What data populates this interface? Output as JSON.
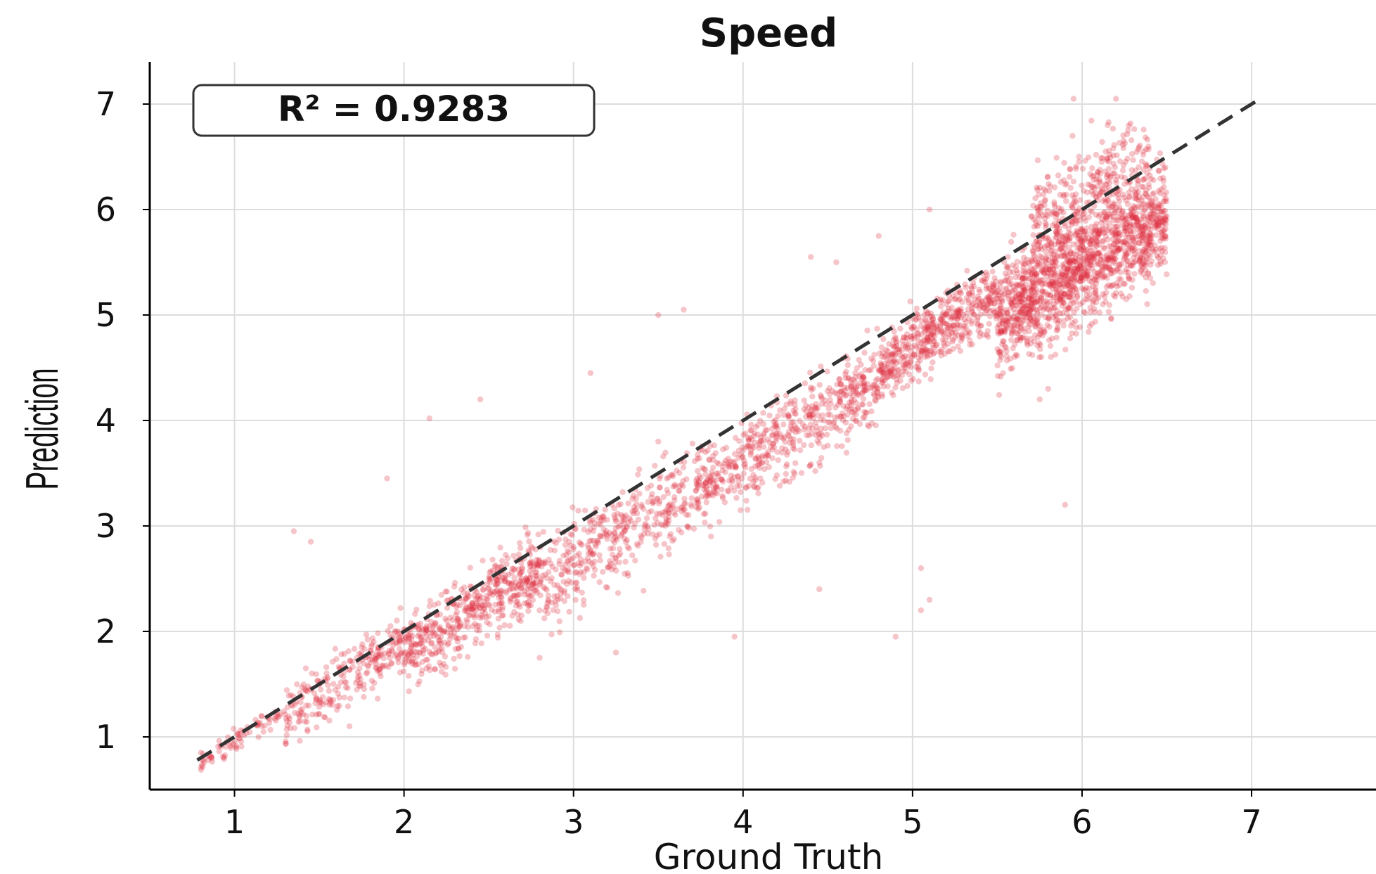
{
  "chart_data": {
    "type": "scatter",
    "title": "Speed",
    "xlabel": "Ground Truth",
    "ylabel": "Prediction",
    "xlim": [
      0.5,
      7.3
    ],
    "ylim": [
      0.5,
      7.4
    ],
    "xticks": [
      "1",
      "2",
      "3",
      "4",
      "5",
      "6",
      "7"
    ],
    "yticks": [
      "1",
      "2",
      "3",
      "4",
      "5",
      "6",
      "7"
    ],
    "grid": true,
    "annotation": "R² = 0.9283",
    "point_color": "#e03040",
    "reference_line": {
      "style": "dashed",
      "color": "#333333",
      "from": [
        0.78,
        0.78
      ],
      "to": [
        7.05,
        7.05
      ]
    },
    "clusters": [
      {
        "x_range": [
          0.8,
          1.3
        ],
        "y_center_offset": -0.05,
        "spread": 0.08,
        "count": 80
      },
      {
        "x_range": [
          1.3,
          2.0
        ],
        "y_center_offset": -0.1,
        "spread": 0.22,
        "count": 260
      },
      {
        "x_range": [
          2.0,
          2.8
        ],
        "y_center_offset": -0.2,
        "spread": 0.25,
        "count": 520
      },
      {
        "x_range": [
          2.8,
          3.8
        ],
        "y_center_offset": -0.35,
        "spread": 0.3,
        "count": 460
      },
      {
        "x_range": [
          3.8,
          4.8
        ],
        "y_center_offset": -0.4,
        "spread": 0.28,
        "count": 520
      },
      {
        "x_range": [
          4.8,
          5.5
        ],
        "y_center_offset": -0.3,
        "spread": 0.22,
        "count": 500
      },
      {
        "x_range": [
          5.5,
          6.5
        ],
        "y_center_offset": -0.55,
        "spread": 0.35,
        "count": 1400
      },
      {
        "x_range": [
          5.7,
          6.4
        ],
        "y_center_offset": 0.1,
        "spread": 0.35,
        "count": 350
      }
    ],
    "outliers": [
      [
        1.35,
        2.95
      ],
      [
        1.45,
        2.85
      ],
      [
        1.9,
        3.45
      ],
      [
        2.15,
        4.02
      ],
      [
        2.45,
        4.2
      ],
      [
        3.1,
        4.45
      ],
      [
        3.5,
        5.0
      ],
      [
        3.65,
        5.05
      ],
      [
        4.4,
        5.55
      ],
      [
        4.55,
        5.5
      ],
      [
        4.8,
        5.75
      ],
      [
        3.95,
        1.95
      ],
      [
        2.8,
        1.75
      ],
      [
        3.25,
        1.8
      ],
      [
        4.45,
        2.4
      ],
      [
        4.9,
        1.95
      ],
      [
        5.05,
        2.2
      ],
      [
        5.05,
        2.6
      ],
      [
        5.1,
        2.3
      ],
      [
        5.9,
        3.2
      ],
      [
        5.8,
        4.3
      ],
      [
        5.75,
        4.2
      ],
      [
        5.95,
        7.05
      ],
      [
        6.2,
        7.05
      ],
      [
        5.1,
        6.0
      ],
      [
        3.5,
        3.8
      ]
    ]
  }
}
